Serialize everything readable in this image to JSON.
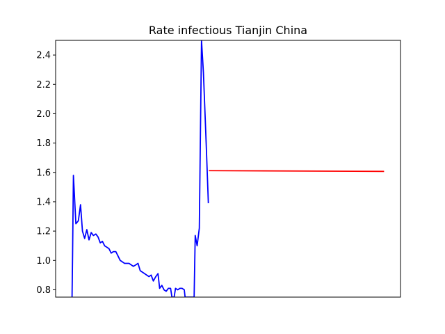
{
  "chart_data": {
    "type": "line",
    "title": "Rate infectious Tianjin China",
    "xlabel": "",
    "ylabel": "",
    "ylim": [
      0.75,
      2.5
    ],
    "xlim": [
      0,
      126
    ],
    "x_ticks_visible": false,
    "y_ticks": [
      "0.8",
      "1.0",
      "1.2",
      "1.4",
      "1.6",
      "1.8",
      "2.0",
      "2.2",
      "2.4"
    ],
    "grid": false,
    "series": [
      {
        "color": "#0000ff",
        "points": [
          [
            6.0,
            0.75
          ],
          [
            6.2,
            1.05
          ],
          [
            6.5,
            1.58
          ],
          [
            7.4,
            1.25
          ],
          [
            8.3,
            1.27
          ],
          [
            9.1,
            1.38
          ],
          [
            9.8,
            1.2
          ],
          [
            10.6,
            1.15
          ],
          [
            11.4,
            1.21
          ],
          [
            12.2,
            1.14
          ],
          [
            13.0,
            1.19
          ],
          [
            13.8,
            1.17
          ],
          [
            14.7,
            1.18
          ],
          [
            15.5,
            1.16
          ],
          [
            16.3,
            1.12
          ],
          [
            17.1,
            1.13
          ],
          [
            17.9,
            1.1
          ],
          [
            18.7,
            1.09
          ],
          [
            19.5,
            1.08
          ],
          [
            20.3,
            1.05
          ],
          [
            21.1,
            1.06
          ],
          [
            22.0,
            1.06
          ],
          [
            22.8,
            1.03
          ],
          [
            23.6,
            1.0
          ],
          [
            24.4,
            0.99
          ],
          [
            25.2,
            0.98
          ],
          [
            26.0,
            0.98
          ],
          [
            26.8,
            0.98
          ],
          [
            27.6,
            0.97
          ],
          [
            28.4,
            0.96
          ],
          [
            29.3,
            0.97
          ],
          [
            30.1,
            0.98
          ],
          [
            30.9,
            0.93
          ],
          [
            31.7,
            0.92
          ],
          [
            32.5,
            0.91
          ],
          [
            33.3,
            0.9
          ],
          [
            34.1,
            0.89
          ],
          [
            34.9,
            0.9
          ],
          [
            35.7,
            0.86
          ],
          [
            36.6,
            0.89
          ],
          [
            37.4,
            0.91
          ],
          [
            38.0,
            0.81
          ],
          [
            38.8,
            0.83
          ],
          [
            39.6,
            0.8
          ],
          [
            40.4,
            0.79
          ],
          [
            41.2,
            0.81
          ],
          [
            42.0,
            0.81
          ],
          [
            42.5,
            0.75
          ],
          [
            43.3,
            0.75
          ],
          [
            43.8,
            0.81
          ],
          [
            44.6,
            0.8
          ],
          [
            45.4,
            0.81
          ],
          [
            46.2,
            0.81
          ],
          [
            47.0,
            0.8
          ],
          [
            47.3,
            0.75
          ],
          [
            50.6,
            0.75
          ],
          [
            51.0,
            1.17
          ],
          [
            51.7,
            1.1
          ],
          [
            52.5,
            1.22
          ],
          [
            53.3,
            2.5
          ],
          [
            54.0,
            2.28
          ],
          [
            55.0,
            1.8
          ],
          [
            55.8,
            1.39
          ]
        ]
      },
      {
        "color": "#ff0000",
        "points": [
          [
            56.0,
            1.612
          ],
          [
            120.0,
            1.607
          ]
        ]
      }
    ]
  }
}
